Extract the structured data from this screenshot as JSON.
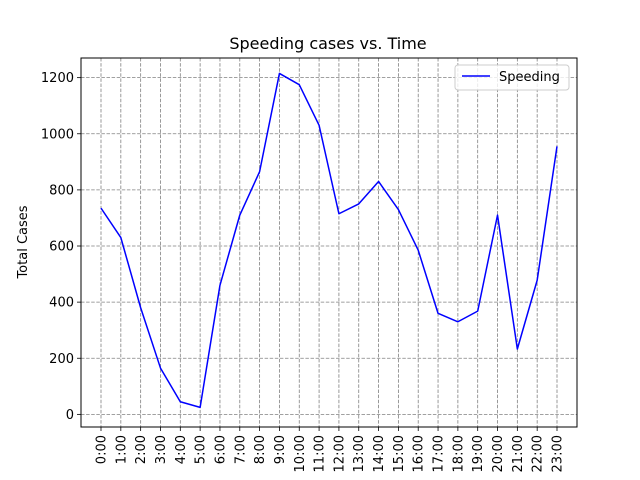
{
  "chart_data": {
    "type": "line",
    "title": "Speeding cases vs. Time",
    "xlabel": "",
    "ylabel": "Total Cases",
    "categories": [
      "0:00",
      "1:00",
      "2:00",
      "3:00",
      "4:00",
      "5:00",
      "6:00",
      "7:00",
      "8:00",
      "9:00",
      "10:00",
      "11:00",
      "12:00",
      "13:00",
      "14:00",
      "15:00",
      "16:00",
      "17:00",
      "18:00",
      "19:00",
      "20:00",
      "21:00",
      "22:00",
      "23:00"
    ],
    "series": [
      {
        "name": "Speeding",
        "color": "#0000ff",
        "values": [
          735,
          630,
          380,
          165,
          45,
          25,
          460,
          710,
          865,
          1215,
          1175,
          1030,
          715,
          750,
          830,
          730,
          585,
          360,
          330,
          368,
          710,
          233,
          478,
          955
        ]
      }
    ],
    "ylim": [
      -45,
      1270
    ],
    "yticks": [
      0,
      200,
      400,
      600,
      800,
      1000,
      1200
    ],
    "grid": true,
    "grid_style": "dashed",
    "legend_position": "top-right"
  }
}
